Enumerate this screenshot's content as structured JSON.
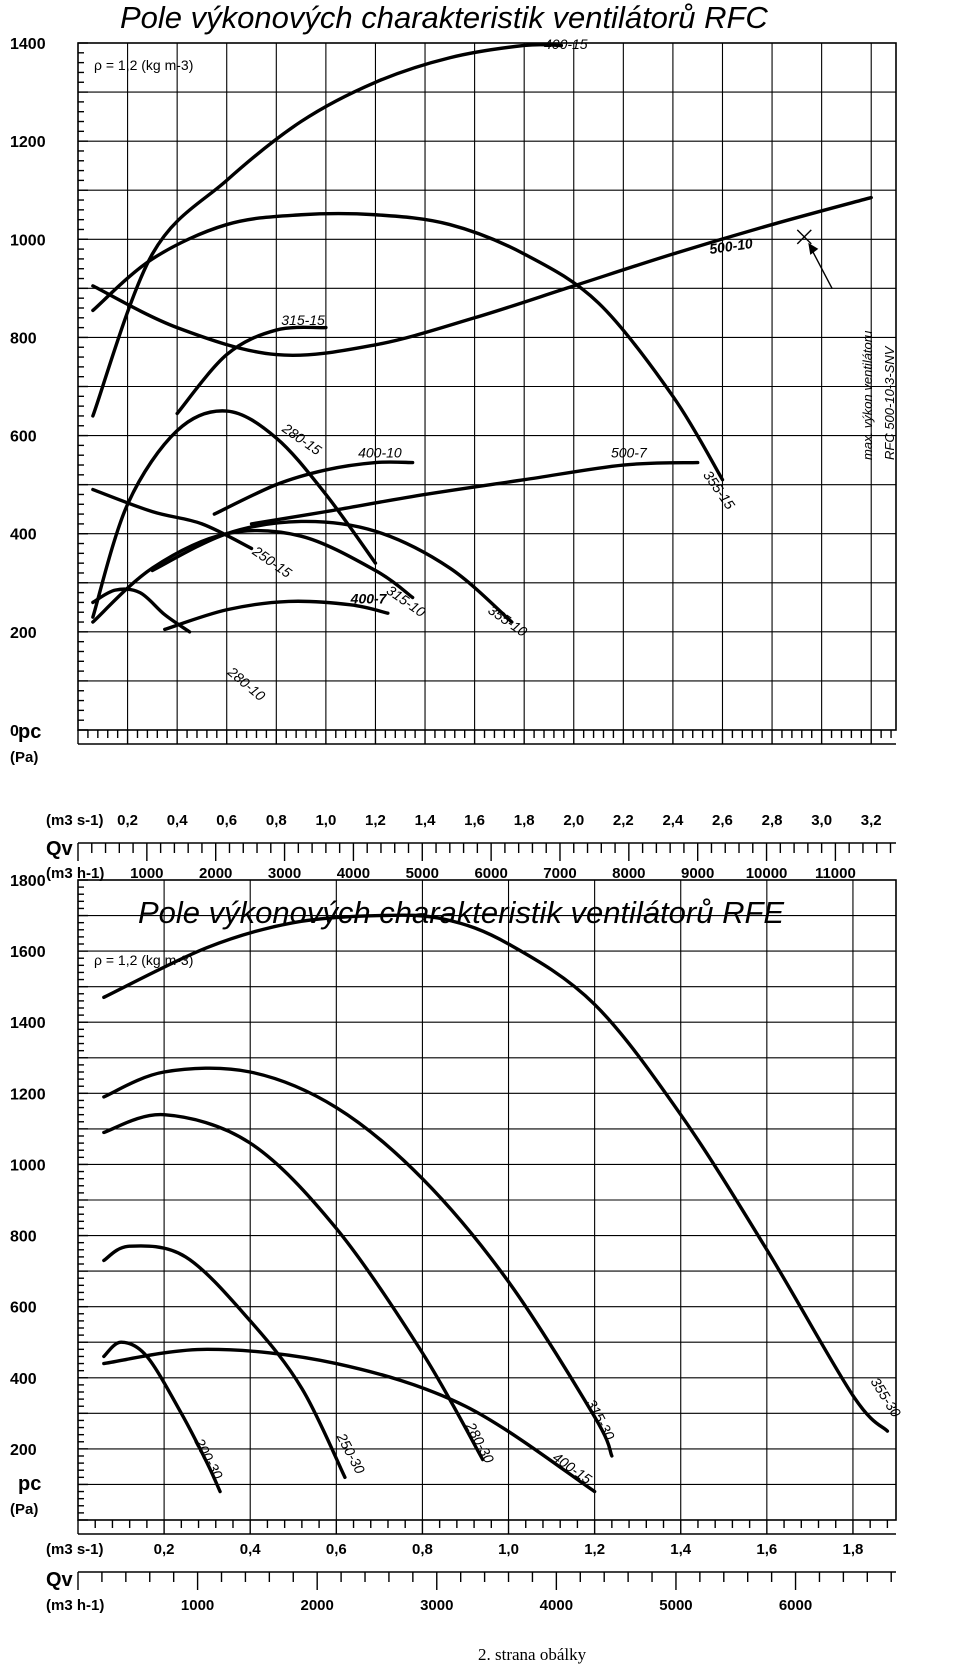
{
  "footer": "2. strana obálky",
  "chart_data": [
    {
      "type": "line",
      "title": "Pole výkonových charakteristik ventilátorů RFC",
      "density_note": "ρ = 1,2 (kg m-3)",
      "ylabel": "pc",
      "ylabel_unit": "(Pa)",
      "ylim": [
        0,
        1400
      ],
      "yticks": [
        "0",
        "200",
        "400",
        "600",
        "800",
        "1000",
        "1200",
        "1400"
      ],
      "xlabel": "Qv",
      "xunit_primary": "(m3 s-1)",
      "xunit_secondary": "(m3 h-1)",
      "xlim": [
        0,
        3.3
      ],
      "xticks_primary": [
        "0,2",
        "0,4",
        "0,6",
        "0,8",
        "1,0",
        "1,2",
        "1,4",
        "1,6",
        "1,8",
        "2,0",
        "2,2",
        "2,4",
        "2,6",
        "2,8",
        "3,0",
        "3,2"
      ],
      "xticks_secondary": [
        "1000",
        "2000",
        "3000",
        "4000",
        "5000",
        "6000",
        "7000",
        "8000",
        "9000",
        "10000",
        "11000"
      ],
      "grid": true,
      "annotation": {
        "lines": [
          "max. výkon ventilátoru",
          "RFC 500-10-3-SNV"
        ],
        "point": [
          2.93,
          1005
        ]
      },
      "series": [
        {
          "name": "400-15",
          "label_at": [
            1.88,
            1388
          ],
          "x": [
            0.06,
            0.3,
            0.6,
            0.9,
            1.2,
            1.5,
            1.8,
            1.95
          ],
          "y": [
            640,
            970,
            1120,
            1240,
            1320,
            1370,
            1395,
            1395
          ]
        },
        {
          "name": "355-15",
          "label_at": [
            2.52,
            520
          ],
          "x": [
            0.06,
            0.3,
            0.6,
            0.9,
            1.2,
            1.5,
            1.8,
            2.1,
            2.4,
            2.6
          ],
          "y": [
            855,
            960,
            1030,
            1050,
            1050,
            1030,
            970,
            870,
            680,
            510
          ]
        },
        {
          "name": "500-10",
          "label_at": [
            2.55,
            970
          ],
          "x": [
            0.06,
            0.4,
            0.8,
            1.2,
            1.6,
            2.0,
            2.4,
            2.8,
            3.2
          ],
          "y": [
            905,
            820,
            765,
            785,
            840,
            905,
            970,
            1030,
            1085
          ]
        },
        {
          "name": "315-15",
          "label_at": [
            0.82,
            825
          ],
          "x": [
            0.4,
            0.6,
            0.8,
            1.0
          ],
          "y": [
            645,
            765,
            815,
            820
          ]
        },
        {
          "name": "280-15",
          "label_at": [
            0.82,
            610
          ],
          "x": [
            0.06,
            0.2,
            0.4,
            0.6,
            0.8,
            1.0,
            1.2
          ],
          "y": [
            230,
            460,
            610,
            650,
            595,
            480,
            340
          ]
        },
        {
          "name": "400-10",
          "label_at": [
            1.13,
            555
          ],
          "x": [
            0.55,
            0.8,
            1.0,
            1.2,
            1.35
          ],
          "y": [
            440,
            500,
            530,
            545,
            545
          ]
        },
        {
          "name": "500-7",
          "label_at": [
            2.15,
            555
          ],
          "x": [
            0.7,
            1.0,
            1.4,
            1.8,
            2.2,
            2.5
          ],
          "y": [
            420,
            445,
            480,
            510,
            540,
            545
          ]
        },
        {
          "name": "250-15",
          "label_at": [
            0.7,
            360
          ],
          "x": [
            0.06,
            0.3,
            0.5,
            0.7
          ],
          "y": [
            490,
            445,
            420,
            370
          ]
        },
        {
          "name": "315-10",
          "label_at": [
            1.24,
            280
          ],
          "x": [
            0.06,
            0.3,
            0.6,
            0.9,
            1.2,
            1.35
          ],
          "y": [
            220,
            330,
            400,
            395,
            325,
            270
          ]
        },
        {
          "name": "355-10",
          "label_at": [
            1.65,
            240
          ],
          "x": [
            0.3,
            0.6,
            0.9,
            1.2,
            1.5,
            1.75
          ],
          "y": [
            325,
            400,
            425,
            405,
            330,
            220
          ]
        },
        {
          "name": "400-7",
          "label_at": [
            1.1,
            258
          ],
          "x": [
            0.35,
            0.6,
            0.85,
            1.1,
            1.25
          ],
          "y": [
            205,
            245,
            262,
            255,
            238
          ]
        },
        {
          "name": "280-10",
          "label_at": [
            0.6,
            115
          ],
          "x": [
            0.06,
            0.15,
            0.25,
            0.35,
            0.45
          ],
          "y": [
            260,
            285,
            280,
            235,
            200
          ]
        }
      ]
    },
    {
      "type": "line",
      "title": "Pole výkonových charakteristik ventilátorů RFE",
      "density_note": "ρ = 1,2 (kg m-3)",
      "ylabel": "pc",
      "ylabel_unit": "(Pa)",
      "ylim": [
        0,
        1800
      ],
      "yticks": [
        "200",
        "400",
        "600",
        "800",
        "1000",
        "1200",
        "1400",
        "1600",
        "1800"
      ],
      "xlabel": "Qv",
      "xunit_primary": "(m3 s-1)",
      "xunit_secondary": "(m3 h-1)",
      "xlim": [
        0,
        1.9
      ],
      "xticks_primary": [
        "0,2",
        "0,4",
        "0,6",
        "0,8",
        "1,0",
        "1,2",
        "1,4",
        "1,6",
        "1,8"
      ],
      "xticks_secondary": [
        "1000",
        "2000",
        "3000",
        "4000",
        "5000",
        "6000"
      ],
      "grid": true,
      "series": [
        {
          "name": "355-30",
          "label_at": [
            1.84,
            390
          ],
          "x": [
            0.06,
            0.3,
            0.5,
            0.7,
            0.85,
            1.0,
            1.2,
            1.4,
            1.6,
            1.8,
            1.88
          ],
          "y": [
            1470,
            1610,
            1680,
            1700,
            1690,
            1620,
            1450,
            1140,
            760,
            350,
            250
          ]
        },
        {
          "name": "315-30",
          "label_at": [
            1.18,
            330
          ],
          "x": [
            0.06,
            0.2,
            0.4,
            0.6,
            0.8,
            1.0,
            1.2,
            1.24
          ],
          "y": [
            1190,
            1260,
            1260,
            1160,
            960,
            670,
            290,
            180
          ]
        },
        {
          "name": "280-30",
          "label_at": [
            0.9,
            265
          ],
          "x": [
            0.06,
            0.2,
            0.4,
            0.6,
            0.8,
            0.94
          ],
          "y": [
            1090,
            1140,
            1060,
            820,
            470,
            170
          ]
        },
        {
          "name": "250-30",
          "label_at": [
            0.6,
            235
          ],
          "x": [
            0.06,
            0.12,
            0.25,
            0.4,
            0.52,
            0.62
          ],
          "y": [
            730,
            770,
            740,
            560,
            370,
            120
          ]
        },
        {
          "name": "200-30",
          "label_at": [
            0.27,
            220
          ],
          "x": [
            0.06,
            0.1,
            0.16,
            0.24,
            0.3,
            0.33
          ],
          "y": [
            460,
            500,
            460,
            300,
            160,
            80
          ]
        },
        {
          "name": "400-15",
          "label_at": [
            1.1,
            170
          ],
          "x": [
            0.06,
            0.3,
            0.6,
            0.9,
            1.2
          ],
          "y": [
            440,
            480,
            440,
            320,
            80
          ]
        }
      ]
    }
  ]
}
